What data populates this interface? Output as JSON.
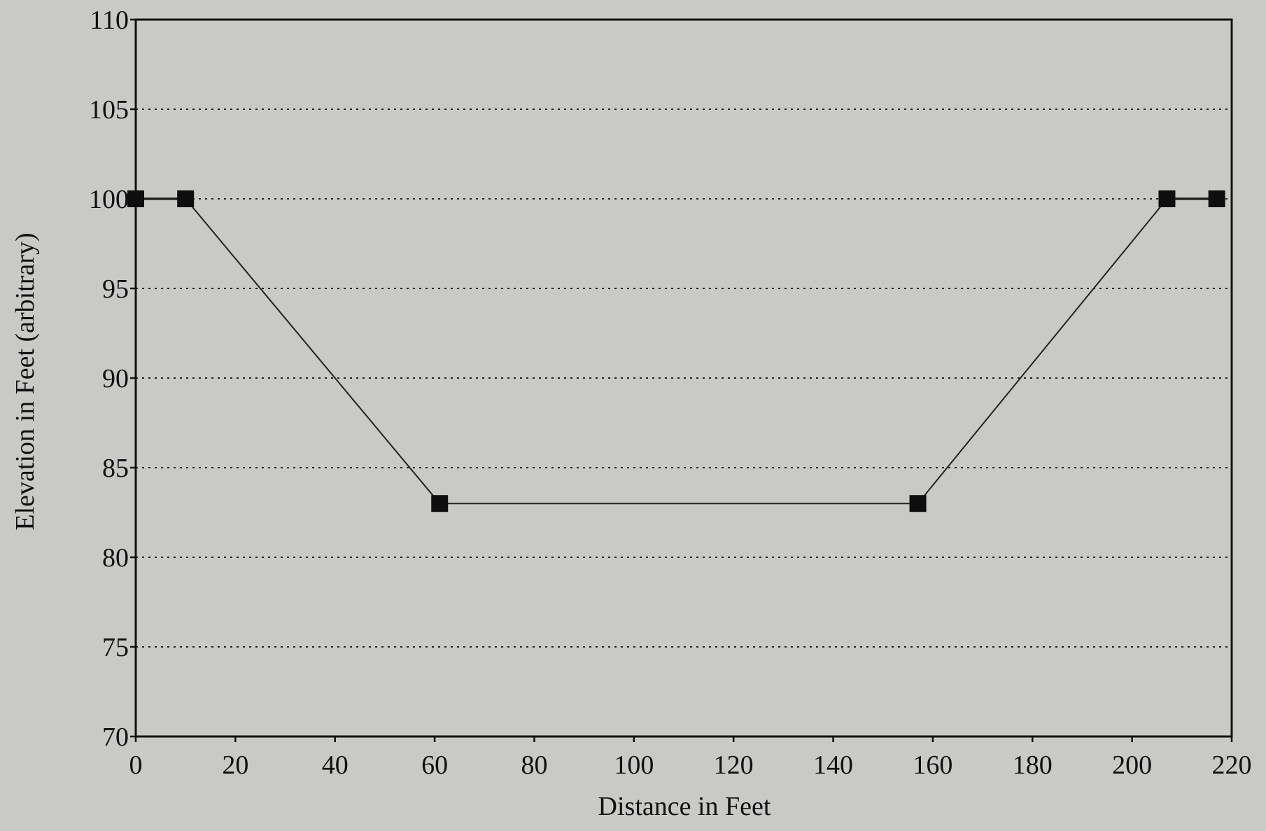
{
  "chart_data": {
    "type": "line",
    "title": "",
    "xlabel": "Distance in Feet",
    "ylabel": "Elevation in Feet (arbitrary)",
    "xlim": [
      0,
      220
    ],
    "ylim": [
      70,
      110
    ],
    "x_ticks": [
      0,
      20,
      40,
      60,
      80,
      100,
      120,
      140,
      160,
      180,
      200,
      220
    ],
    "y_ticks": [
      70,
      75,
      80,
      85,
      90,
      95,
      100,
      105,
      110
    ],
    "grid": "horizontal dotted",
    "legend": "none",
    "series": [
      {
        "x": [
          0,
          10,
          61,
          157,
          207,
          217
        ],
        "y": [
          100,
          100,
          83,
          83,
          100,
          100
        ]
      }
    ],
    "colors": {
      "line": "#222222",
      "marker": "#0e0e0e"
    }
  }
}
